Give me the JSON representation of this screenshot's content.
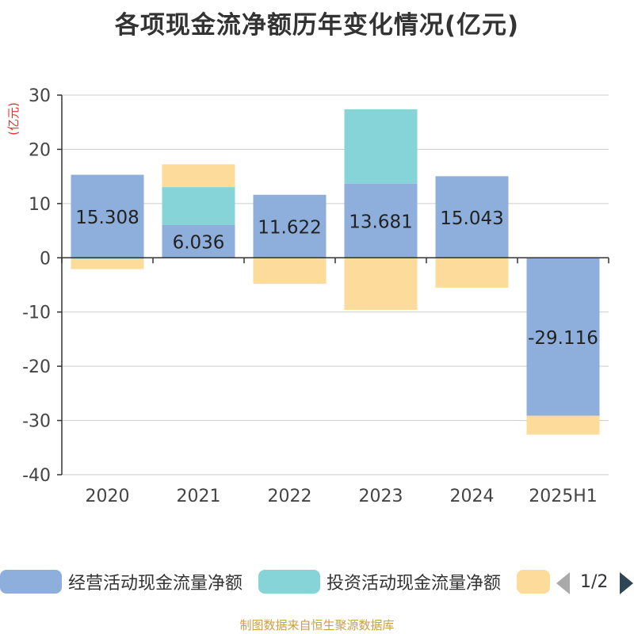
{
  "chart_data": {
    "type": "bar",
    "title": "各项现金流净额历年变化情况(亿元)",
    "y_unit_label": "(亿元)",
    "categories": [
      "2020",
      "2021",
      "2022",
      "2023",
      "2024",
      "2025H1"
    ],
    "stacked": true,
    "series": [
      {
        "name": "经营活动现金流量净额",
        "color": "#8eaedb",
        "values": [
          15.308,
          6.036,
          11.622,
          13.681,
          15.043,
          -29.116
        ],
        "show_labels": true
      },
      {
        "name": "投资活动现金流量净额",
        "color": "#86d4d8",
        "values": [
          -0.2,
          7.0,
          0,
          13.7,
          -0.1,
          0
        ],
        "show_labels": false
      },
      {
        "color": "#fddb9a",
        "values": [
          -1.9,
          4.2,
          -4.8,
          -9.6,
          -5.4,
          -3.5
        ],
        "show_labels": false
      }
    ],
    "ylim": [
      -40,
      30
    ],
    "yticks": [
      30,
      20,
      10,
      0,
      -10,
      -20,
      -30,
      -40
    ],
    "grid": true,
    "legend_position": "bottom"
  },
  "legend": {
    "item1": "经营活动现金流量净额",
    "item2": "投资活动现金流量净额",
    "page": "1/2",
    "colors": [
      "#8eaedb",
      "#86d4d8",
      "#fddb9a"
    ]
  },
  "source": "制图数据来自恒生聚源数据库"
}
